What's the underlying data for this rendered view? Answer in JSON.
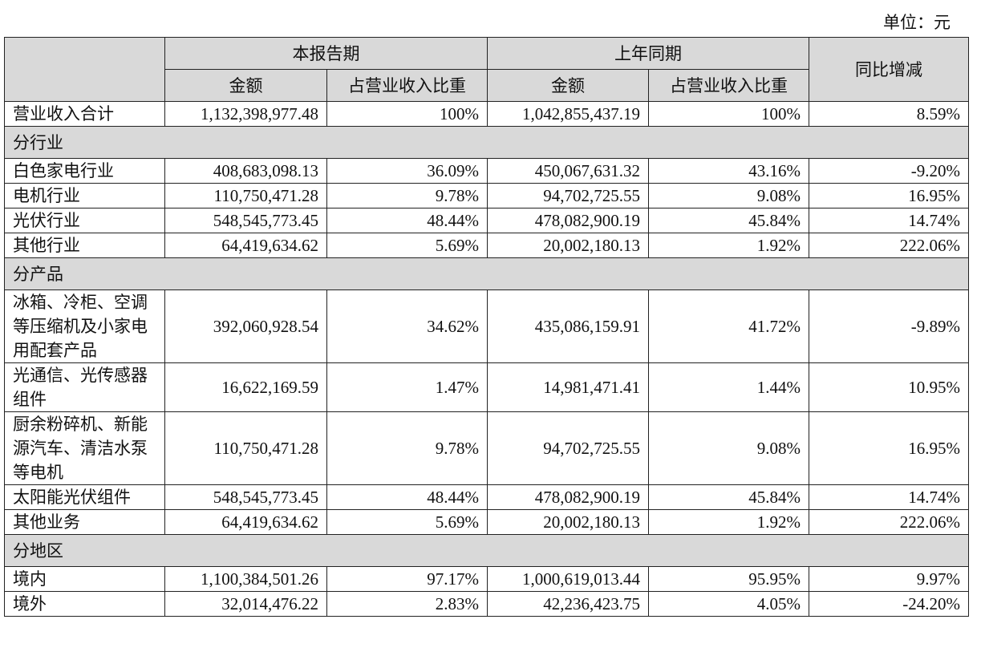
{
  "unit": "单位：元",
  "table": {
    "header": {
      "groups": [
        "本报告期",
        "上年同期"
      ],
      "yoy": "同比增减",
      "sub": [
        "金额",
        "占营业收入比重",
        "金额",
        "占营业收入比重"
      ]
    },
    "rows": [
      [
        "营业收入合计",
        "1,132,398,977.48",
        "100%",
        "1,042,855,437.19",
        "100%",
        "8.59%"
      ],
      [
        "分行业"
      ],
      [
        "白色家电行业",
        "408,683,098.13",
        "36.09%",
        "450,067,631.32",
        "43.16%",
        "-9.20%"
      ],
      [
        "电机行业",
        "110,750,471.28",
        "9.78%",
        "94,702,725.55",
        "9.08%",
        "16.95%"
      ],
      [
        "光伏行业",
        "548,545,773.45",
        "48.44%",
        "478,082,900.19",
        "45.84%",
        "14.74%"
      ],
      [
        "其他行业",
        "64,419,634.62",
        "5.69%",
        "20,002,180.13",
        "1.92%",
        "222.06%"
      ],
      [
        "分产品"
      ],
      [
        "冰箱、冷柜、空调等压缩机及小家电用配套产品",
        "392,060,928.54",
        "34.62%",
        "435,086,159.91",
        "41.72%",
        "-9.89%"
      ],
      [
        "光通信、光传感器组件",
        "16,622,169.59",
        "1.47%",
        "14,981,471.41",
        "1.44%",
        "10.95%"
      ],
      [
        "厨余粉碎机、新能源汽车、清洁水泵等电机",
        "110,750,471.28",
        "9.78%",
        "94,702,725.55",
        "9.08%",
        "16.95%"
      ],
      [
        "太阳能光伏组件",
        "548,545,773.45",
        "48.44%",
        "478,082,900.19",
        "45.84%",
        "14.74%"
      ],
      [
        "其他业务",
        "64,419,634.62",
        "5.69%",
        "20,002,180.13",
        "1.92%",
        "222.06%"
      ],
      [
        "分地区"
      ],
      [
        "境内",
        "1,100,384,501.26",
        "97.17%",
        "1,000,619,013.44",
        "95.95%",
        "9.97%"
      ],
      [
        "境外",
        "32,014,476.22",
        "2.83%",
        "42,236,423.75",
        "4.05%",
        "-24.20%"
      ]
    ]
  }
}
